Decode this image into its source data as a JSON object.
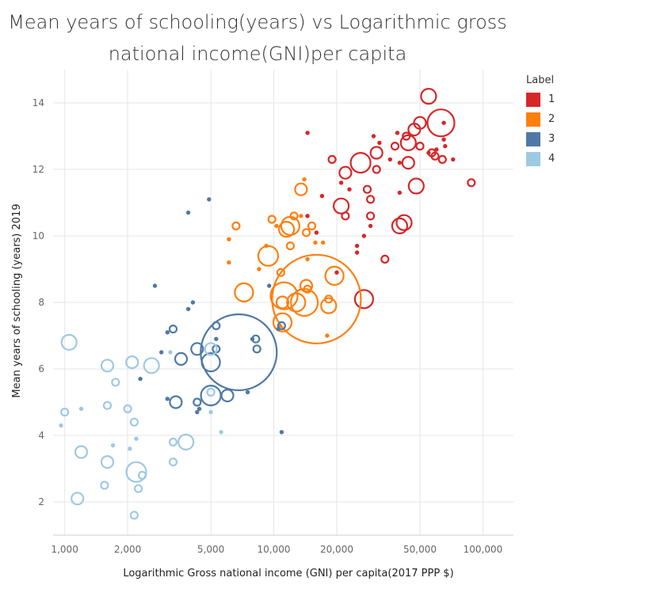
{
  "chart_data": {
    "type": "scatter",
    "title": "Mean years of schooling(years) vs Logarithmic gross national income(GNI)per capita",
    "title_lines": [
      "Mean years of schooling(years) vs Logarithmic gross",
      "national income(GNI)per capita"
    ],
    "xlabel": "Logarithmic Gross national income (GNI) per capita(2017 PPP $)",
    "ylabel": "Mean years of schooling (years) 2019",
    "x_scale": "log",
    "xlim": [
      880,
      140000
    ],
    "ylim": [
      1,
      15
    ],
    "x_ticks": [
      1000,
      2000,
      5000,
      10000,
      20000,
      50000,
      100000
    ],
    "x_tick_labels": [
      "1,000",
      "2,000",
      "5,000",
      "10,000",
      "20,000",
      "50,000",
      "100,000"
    ],
    "y_ticks": [
      2,
      4,
      6,
      8,
      10,
      12,
      14
    ],
    "y_tick_labels": [
      "2",
      "4",
      "6",
      "8",
      "10",
      "12",
      "14"
    ],
    "grid": true,
    "legend": {
      "title": "Label",
      "position": "right-top"
    },
    "series": [
      {
        "name": "1",
        "color": "#d62728",
        "points": [
          {
            "x": 55000,
            "y": 14.2,
            "s": 3
          },
          {
            "x": 63000,
            "y": 13.4,
            "s": 6
          },
          {
            "x": 14500,
            "y": 13.1,
            "s": 0
          },
          {
            "x": 65000,
            "y": 13.4,
            "s": 0
          },
          {
            "x": 50000,
            "y": 13.4,
            "s": 2
          },
          {
            "x": 47000,
            "y": 13.2,
            "s": 2
          },
          {
            "x": 30000,
            "y": 13.0,
            "s": 0
          },
          {
            "x": 39000,
            "y": 13.1,
            "s": 0
          },
          {
            "x": 43000,
            "y": 13.0,
            "s": 1
          },
          {
            "x": 44000,
            "y": 12.8,
            "s": 3
          },
          {
            "x": 38000,
            "y": 12.7,
            "s": 1
          },
          {
            "x": 50000,
            "y": 12.7,
            "s": 1
          },
          {
            "x": 65000,
            "y": 12.9,
            "s": 0
          },
          {
            "x": 66000,
            "y": 12.7,
            "s": 0
          },
          {
            "x": 60000,
            "y": 12.6,
            "s": 0
          },
          {
            "x": 32000,
            "y": 12.8,
            "s": 0
          },
          {
            "x": 57000,
            "y": 12.5,
            "s": 1
          },
          {
            "x": 59000,
            "y": 12.4,
            "s": 1
          },
          {
            "x": 55000,
            "y": 12.5,
            "s": 0
          },
          {
            "x": 64000,
            "y": 12.3,
            "s": 1
          },
          {
            "x": 72000,
            "y": 12.3,
            "s": 0
          },
          {
            "x": 31000,
            "y": 12.5,
            "s": 2
          },
          {
            "x": 26000,
            "y": 12.2,
            "s": 5
          },
          {
            "x": 44000,
            "y": 12.2,
            "s": 2
          },
          {
            "x": 36000,
            "y": 12.3,
            "s": 0
          },
          {
            "x": 40000,
            "y": 12.2,
            "s": 0
          },
          {
            "x": 19000,
            "y": 12.3,
            "s": 1
          },
          {
            "x": 22000,
            "y": 11.9,
            "s": 2
          },
          {
            "x": 31000,
            "y": 12.0,
            "s": 1
          },
          {
            "x": 23000,
            "y": 11.4,
            "s": 0
          },
          {
            "x": 21000,
            "y": 11.6,
            "s": 0
          },
          {
            "x": 88000,
            "y": 11.6,
            "s": 1
          },
          {
            "x": 48000,
            "y": 11.5,
            "s": 3
          },
          {
            "x": 28000,
            "y": 11.4,
            "s": 1
          },
          {
            "x": 40000,
            "y": 11.3,
            "s": 0
          },
          {
            "x": 17000,
            "y": 11.2,
            "s": 0
          },
          {
            "x": 29000,
            "y": 11.1,
            "s": 1
          },
          {
            "x": 21000,
            "y": 10.9,
            "s": 3
          },
          {
            "x": 22000,
            "y": 10.6,
            "s": 1
          },
          {
            "x": 29000,
            "y": 10.6,
            "s": 1
          },
          {
            "x": 14500,
            "y": 10.6,
            "s": 0
          },
          {
            "x": 42000,
            "y": 10.4,
            "s": 3
          },
          {
            "x": 40000,
            "y": 10.3,
            "s": 3
          },
          {
            "x": 29000,
            "y": 10.3,
            "s": 0
          },
          {
            "x": 16000,
            "y": 10.1,
            "s": 0
          },
          {
            "x": 27000,
            "y": 10.0,
            "s": 0
          },
          {
            "x": 25000,
            "y": 9.7,
            "s": 0
          },
          {
            "x": 25000,
            "y": 9.5,
            "s": 0
          },
          {
            "x": 34000,
            "y": 9.3,
            "s": 1
          },
          {
            "x": 20000,
            "y": 8.9,
            "s": 0
          },
          {
            "x": 27000,
            "y": 8.1,
            "s": 4
          }
        ]
      },
      {
        "name": "2",
        "color": "#ff7f0e",
        "points": [
          {
            "x": 14000,
            "y": 11.7,
            "s": 0
          },
          {
            "x": 13500,
            "y": 11.4,
            "s": 2
          },
          {
            "x": 6600,
            "y": 10.3,
            "s": 1
          },
          {
            "x": 9800,
            "y": 10.5,
            "s": 1
          },
          {
            "x": 12500,
            "y": 10.6,
            "s": 1
          },
          {
            "x": 13500,
            "y": 10.6,
            "s": 0
          },
          {
            "x": 15200,
            "y": 10.3,
            "s": 1
          },
          {
            "x": 11500,
            "y": 10.2,
            "s": 3
          },
          {
            "x": 12000,
            "y": 10.3,
            "s": 4
          },
          {
            "x": 14300,
            "y": 10.1,
            "s": 1
          },
          {
            "x": 10300,
            "y": 10.3,
            "s": 0
          },
          {
            "x": 6100,
            "y": 9.9,
            "s": 0
          },
          {
            "x": 12000,
            "y": 9.7,
            "s": 1
          },
          {
            "x": 15800,
            "y": 9.8,
            "s": 0
          },
          {
            "x": 17200,
            "y": 9.8,
            "s": 0
          },
          {
            "x": 9200,
            "y": 9.7,
            "s": 0
          },
          {
            "x": 9400,
            "y": 9.4,
            "s": 5
          },
          {
            "x": 14500,
            "y": 9.3,
            "s": 0
          },
          {
            "x": 6100,
            "y": 9.2,
            "s": 0
          },
          {
            "x": 8500,
            "y": 9.0,
            "s": 0
          },
          {
            "x": 10800,
            "y": 8.9,
            "s": 1
          },
          {
            "x": 19500,
            "y": 8.8,
            "s": 4
          },
          {
            "x": 14300,
            "y": 8.5,
            "s": 2
          },
          {
            "x": 14500,
            "y": 8.4,
            "s": 1
          },
          {
            "x": 7200,
            "y": 8.3,
            "s": 4
          },
          {
            "x": 16000,
            "y": 8.1,
            "s": 15
          },
          {
            "x": 11200,
            "y": 8.2,
            "s": 6
          },
          {
            "x": 11000,
            "y": 8.0,
            "s": 2
          },
          {
            "x": 12800,
            "y": 8.0,
            "s": 4
          },
          {
            "x": 14000,
            "y": 8.0,
            "s": 6
          },
          {
            "x": 18300,
            "y": 8.1,
            "s": 1
          },
          {
            "x": 18300,
            "y": 7.9,
            "s": 3
          },
          {
            "x": 11000,
            "y": 7.4,
            "s": 4
          },
          {
            "x": 10700,
            "y": 7.3,
            "s": 0
          },
          {
            "x": 18000,
            "y": 7.0,
            "s": 0
          }
        ]
      },
      {
        "name": "3",
        "color": "#4e79a7",
        "points": [
          {
            "x": 4900,
            "y": 11.1,
            "s": 0
          },
          {
            "x": 3900,
            "y": 10.7,
            "s": 0
          },
          {
            "x": 9500,
            "y": 8.5,
            "s": 0
          },
          {
            "x": 2700,
            "y": 8.5,
            "s": 0
          },
          {
            "x": 4100,
            "y": 8.0,
            "s": 0
          },
          {
            "x": 3900,
            "y": 7.8,
            "s": 0
          },
          {
            "x": 5300,
            "y": 7.3,
            "s": 1
          },
          {
            "x": 10900,
            "y": 7.3,
            "s": 1
          },
          {
            "x": 3300,
            "y": 7.2,
            "s": 1
          },
          {
            "x": 10500,
            "y": 7.2,
            "s": 0
          },
          {
            "x": 3100,
            "y": 7.1,
            "s": 0
          },
          {
            "x": 5300,
            "y": 6.9,
            "s": 0
          },
          {
            "x": 8200,
            "y": 6.9,
            "s": 1
          },
          {
            "x": 7900,
            "y": 6.9,
            "s": 0
          },
          {
            "x": 4300,
            "y": 6.6,
            "s": 2
          },
          {
            "x": 5300,
            "y": 6.6,
            "s": 1
          },
          {
            "x": 8300,
            "y": 6.6,
            "s": 1
          },
          {
            "x": 6800,
            "y": 6.5,
            "s": 10
          },
          {
            "x": 2900,
            "y": 6.5,
            "s": 0
          },
          {
            "x": 3600,
            "y": 6.3,
            "s": 2
          },
          {
            "x": 5000,
            "y": 6.2,
            "s": 4
          },
          {
            "x": 2300,
            "y": 5.7,
            "s": 0
          },
          {
            "x": 5000,
            "y": 5.2,
            "s": 5
          },
          {
            "x": 6000,
            "y": 5.2,
            "s": 2
          },
          {
            "x": 7500,
            "y": 5.3,
            "s": 0
          },
          {
            "x": 3100,
            "y": 5.1,
            "s": 0
          },
          {
            "x": 3400,
            "y": 5.0,
            "s": 2
          },
          {
            "x": 4300,
            "y": 5.0,
            "s": 1
          },
          {
            "x": 4400,
            "y": 4.8,
            "s": 0
          },
          {
            "x": 4300,
            "y": 4.7,
            "s": 0
          },
          {
            "x": 10900,
            "y": 4.1,
            "s": 0
          }
        ]
      },
      {
        "name": "4",
        "color": "#9ecae1",
        "points": [
          {
            "x": 1050,
            "y": 6.8,
            "s": 3
          },
          {
            "x": 5000,
            "y": 6.6,
            "s": 2
          },
          {
            "x": 2100,
            "y": 6.2,
            "s": 2
          },
          {
            "x": 1600,
            "y": 6.1,
            "s": 2
          },
          {
            "x": 2600,
            "y": 6.1,
            "s": 3
          },
          {
            "x": 3200,
            "y": 6.5,
            "s": 0
          },
          {
            "x": 1750,
            "y": 5.6,
            "s": 1
          },
          {
            "x": 5000,
            "y": 5.3,
            "s": 1
          },
          {
            "x": 1600,
            "y": 4.9,
            "s": 1
          },
          {
            "x": 2000,
            "y": 4.8,
            "s": 1
          },
          {
            "x": 1000,
            "y": 4.7,
            "s": 1
          },
          {
            "x": 1200,
            "y": 4.8,
            "s": 0
          },
          {
            "x": 5000,
            "y": 4.7,
            "s": 0
          },
          {
            "x": 2150,
            "y": 4.4,
            "s": 1
          },
          {
            "x": 960,
            "y": 4.3,
            "s": 0
          },
          {
            "x": 5600,
            "y": 4.1,
            "s": 0
          },
          {
            "x": 2200,
            "y": 3.9,
            "s": 0
          },
          {
            "x": 3300,
            "y": 3.8,
            "s": 1
          },
          {
            "x": 3800,
            "y": 3.8,
            "s": 3
          },
          {
            "x": 1700,
            "y": 3.7,
            "s": 0
          },
          {
            "x": 2050,
            "y": 3.6,
            "s": 0
          },
          {
            "x": 1200,
            "y": 3.5,
            "s": 2
          },
          {
            "x": 1600,
            "y": 3.2,
            "s": 2
          },
          {
            "x": 3300,
            "y": 3.2,
            "s": 1
          },
          {
            "x": 2200,
            "y": 2.9,
            "s": 5
          },
          {
            "x": 2350,
            "y": 2.8,
            "s": 1
          },
          {
            "x": 1550,
            "y": 2.5,
            "s": 1
          },
          {
            "x": 2250,
            "y": 2.4,
            "s": 1
          },
          {
            "x": 1150,
            "y": 2.1,
            "s": 2
          },
          {
            "x": 2150,
            "y": 1.6,
            "s": 1
          }
        ]
      }
    ]
  }
}
